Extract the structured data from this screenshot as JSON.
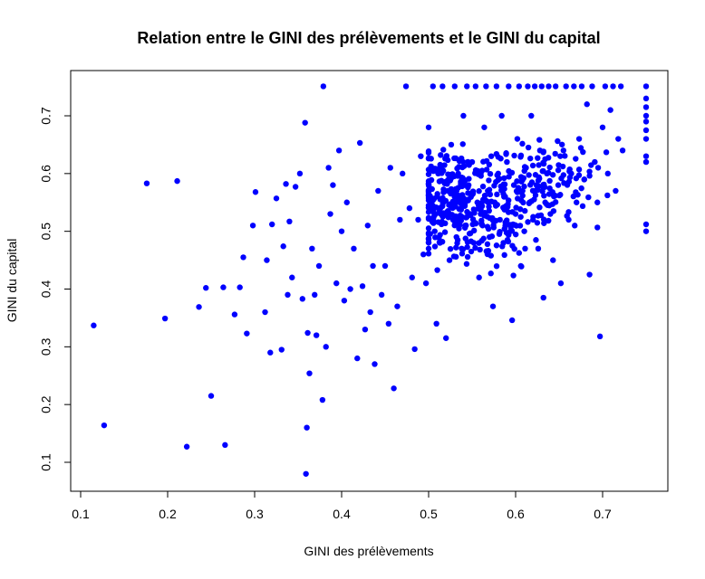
{
  "chart_data": {
    "type": "scatter",
    "title": "Relation entre le GINI des prélèvements et le GINI du capital",
    "xlabel": "GINI des prélèvements",
    "ylabel": "GINI du capital",
    "xlim": [
      0.1,
      0.75
    ],
    "ylim": [
      0.08,
      0.75
    ],
    "xticks": [
      0.1,
      0.2,
      0.3,
      0.4,
      0.5,
      0.6,
      0.7
    ],
    "xtick_labels": [
      "0.1",
      "0.2",
      "0.3",
      "0.4",
      "0.5",
      "0.6",
      "0.7"
    ],
    "yticks": [
      0.1,
      0.2,
      0.3,
      0.4,
      0.5,
      0.6,
      0.7
    ],
    "ytick_labels": [
      "0.1",
      "0.2",
      "0.3",
      "0.4",
      "0.5",
      "0.6",
      "0.7"
    ],
    "grid": false,
    "point_color": "#0000ff",
    "points": [
      [
        0.115,
        0.337
      ],
      [
        0.127,
        0.164
      ],
      [
        0.176,
        0.583
      ],
      [
        0.197,
        0.349
      ],
      [
        0.211,
        0.587
      ],
      [
        0.222,
        0.127
      ],
      [
        0.236,
        0.369
      ],
      [
        0.244,
        0.402
      ],
      [
        0.25,
        0.215
      ],
      [
        0.264,
        0.403
      ],
      [
        0.266,
        0.13
      ],
      [
        0.277,
        0.356
      ],
      [
        0.283,
        0.403
      ],
      [
        0.287,
        0.455
      ],
      [
        0.291,
        0.323
      ],
      [
        0.298,
        0.51
      ],
      [
        0.301,
        0.568
      ],
      [
        0.312,
        0.36
      ],
      [
        0.314,
        0.45
      ],
      [
        0.318,
        0.29
      ],
      [
        0.32,
        0.512
      ],
      [
        0.325,
        0.557
      ],
      [
        0.331,
        0.295
      ],
      [
        0.333,
        0.474
      ],
      [
        0.336,
        0.582
      ],
      [
        0.338,
        0.39
      ],
      [
        0.34,
        0.517
      ],
      [
        0.343,
        0.42
      ],
      [
        0.347,
        0.577
      ],
      [
        0.352,
        0.6
      ],
      [
        0.355,
        0.383
      ],
      [
        0.358,
        0.688
      ],
      [
        0.36,
        0.16
      ],
      [
        0.361,
        0.324
      ],
      [
        0.363,
        0.254
      ],
      [
        0.366,
        0.47
      ],
      [
        0.369,
        0.39
      ],
      [
        0.371,
        0.32
      ],
      [
        0.374,
        0.44
      ],
      [
        0.378,
        0.208
      ],
      [
        0.379,
        0.751
      ],
      [
        0.382,
        0.3
      ],
      [
        0.385,
        0.61
      ],
      [
        0.387,
        0.53
      ],
      [
        0.39,
        0.58
      ],
      [
        0.394,
        0.41
      ],
      [
        0.397,
        0.64
      ],
      [
        0.4,
        0.5
      ],
      [
        0.403,
        0.38
      ],
      [
        0.406,
        0.55
      ],
      [
        0.41,
        0.4
      ],
      [
        0.414,
        0.47
      ],
      [
        0.418,
        0.28
      ],
      [
        0.421,
        0.653
      ],
      [
        0.424,
        0.405
      ],
      [
        0.427,
        0.33
      ],
      [
        0.43,
        0.51
      ],
      [
        0.433,
        0.36
      ],
      [
        0.436,
        0.44
      ],
      [
        0.438,
        0.27
      ],
      [
        0.442,
        0.57
      ],
      [
        0.446,
        0.39
      ],
      [
        0.45,
        0.44
      ],
      [
        0.454,
        0.34
      ],
      [
        0.456,
        0.61
      ],
      [
        0.46,
        0.228
      ],
      [
        0.464,
        0.37
      ],
      [
        0.467,
        0.52
      ],
      [
        0.47,
        0.6
      ],
      [
        0.474,
        0.751
      ],
      [
        0.478,
        0.54
      ],
      [
        0.481,
        0.42
      ],
      [
        0.484,
        0.296
      ],
      [
        0.488,
        0.52
      ],
      [
        0.491,
        0.63
      ],
      [
        0.494,
        0.46
      ],
      [
        0.497,
        0.41
      ],
      [
        0.5,
        0.68
      ],
      [
        0.503,
        0.55
      ],
      [
        0.505,
        0.751
      ],
      [
        0.507,
        0.5
      ],
      [
        0.509,
        0.34
      ],
      [
        0.511,
        0.6
      ],
      [
        0.513,
        0.48
      ],
      [
        0.516,
        0.751
      ],
      [
        0.518,
        0.53
      ],
      [
        0.52,
        0.315
      ],
      [
        0.522,
        0.57
      ],
      [
        0.524,
        0.45
      ],
      [
        0.526,
        0.65
      ],
      [
        0.528,
        0.52
      ],
      [
        0.53,
        0.751
      ],
      [
        0.532,
        0.49
      ],
      [
        0.534,
        0.6
      ],
      [
        0.536,
        0.56
      ],
      [
        0.538,
        0.47
      ],
      [
        0.54,
        0.7
      ],
      [
        0.542,
        0.51
      ],
      [
        0.544,
        0.751
      ],
      [
        0.546,
        0.58
      ],
      [
        0.548,
        0.53
      ],
      [
        0.55,
        0.62
      ],
      [
        0.552,
        0.48
      ],
      [
        0.554,
        0.751
      ],
      [
        0.556,
        0.55
      ],
      [
        0.558,
        0.42
      ],
      [
        0.56,
        0.6
      ],
      [
        0.562,
        0.51
      ],
      [
        0.564,
        0.68
      ],
      [
        0.566,
        0.751
      ],
      [
        0.568,
        0.57
      ],
      [
        0.57,
        0.49
      ],
      [
        0.572,
        0.63
      ],
      [
        0.574,
        0.37
      ],
      [
        0.576,
        0.55
      ],
      [
        0.578,
        0.751
      ],
      [
        0.58,
        0.6
      ],
      [
        0.582,
        0.52
      ],
      [
        0.584,
        0.7
      ],
      [
        0.586,
        0.48
      ],
      [
        0.588,
        0.56
      ],
      [
        0.59,
        0.62
      ],
      [
        0.592,
        0.751
      ],
      [
        0.594,
        0.5
      ],
      [
        0.596,
        0.346
      ],
      [
        0.598,
        0.58
      ],
      [
        0.6,
        0.53
      ],
      [
        0.602,
        0.66
      ],
      [
        0.604,
        0.751
      ],
      [
        0.606,
        0.44
      ],
      [
        0.608,
        0.57
      ],
      [
        0.61,
        0.5
      ],
      [
        0.612,
        0.61
      ],
      [
        0.614,
        0.751
      ],
      [
        0.616,
        0.55
      ],
      [
        0.618,
        0.7
      ],
      [
        0.62,
        0.52
      ],
      [
        0.622,
        0.751
      ],
      [
        0.624,
        0.58
      ],
      [
        0.626,
        0.47
      ],
      [
        0.628,
        0.64
      ],
      [
        0.63,
        0.751
      ],
      [
        0.632,
        0.385
      ],
      [
        0.634,
        0.55
      ],
      [
        0.636,
        0.6
      ],
      [
        0.638,
        0.751
      ],
      [
        0.64,
        0.53
      ],
      [
        0.643,
        0.45
      ],
      [
        0.646,
        0.751
      ],
      [
        0.649,
        0.58
      ],
      [
        0.652,
        0.41
      ],
      [
        0.655,
        0.64
      ],
      [
        0.658,
        0.751
      ],
      [
        0.661,
        0.52
      ],
      [
        0.664,
        0.6
      ],
      [
        0.667,
        0.751
      ],
      [
        0.67,
        0.55
      ],
      [
        0.673,
        0.66
      ],
      [
        0.676,
        0.751
      ],
      [
        0.679,
        0.59
      ],
      [
        0.682,
        0.72
      ],
      [
        0.685,
        0.425
      ],
      [
        0.688,
        0.751
      ],
      [
        0.691,
        0.62
      ],
      [
        0.694,
        0.55
      ],
      [
        0.697,
        0.318
      ],
      [
        0.7,
        0.68
      ],
      [
        0.703,
        0.751
      ],
      [
        0.706,
        0.6
      ],
      [
        0.709,
        0.71
      ],
      [
        0.712,
        0.751
      ],
      [
        0.715,
        0.57
      ],
      [
        0.718,
        0.66
      ],
      [
        0.721,
        0.751
      ],
      [
        0.723,
        0.64
      ],
      [
        0.75,
        0.751
      ],
      [
        0.75,
        0.73
      ],
      [
        0.75,
        0.715
      ],
      [
        0.75,
        0.7
      ],
      [
        0.75,
        0.69
      ],
      [
        0.75,
        0.675
      ],
      [
        0.75,
        0.66
      ],
      [
        0.75,
        0.63
      ],
      [
        0.75,
        0.62
      ],
      [
        0.75,
        0.512
      ],
      [
        0.75,
        0.5
      ],
      [
        0.359,
        0.08
      ]
    ],
    "cluster_seed": 12345,
    "cluster_points": [
      {
        "center": [
          0.55,
          0.53
        ],
        "spread": [
          0.06,
          0.07
        ],
        "count": 260
      },
      {
        "center": [
          0.63,
          0.58
        ],
        "spread": [
          0.05,
          0.06
        ],
        "count": 130
      },
      {
        "center": [
          0.52,
          0.58
        ],
        "spread": [
          0.03,
          0.06
        ],
        "count": 80
      }
    ]
  }
}
